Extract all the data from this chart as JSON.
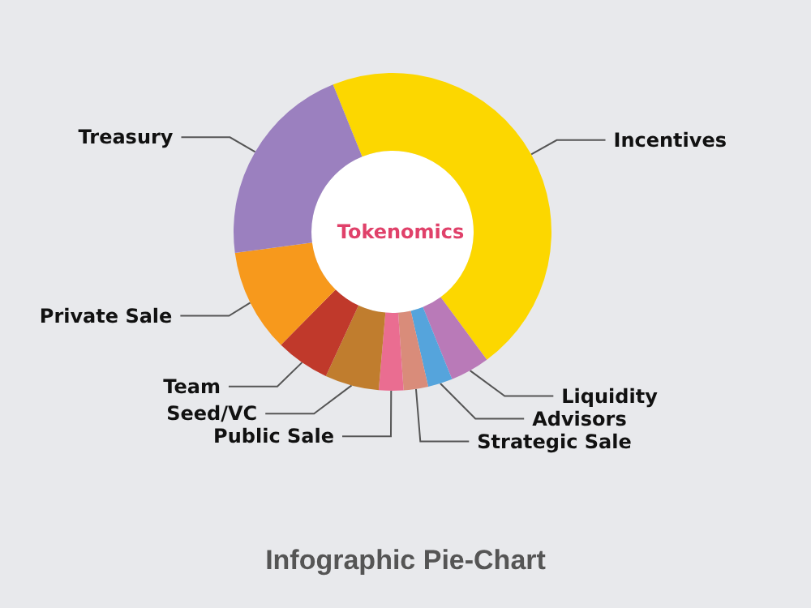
{
  "chart_data": {
    "type": "donut",
    "title": "Tokenomics",
    "annotations": [
      "Infographic Pie-Chart"
    ],
    "categories": [
      "Incentives",
      "Liquidity",
      "Advisors",
      "Strategic Sale",
      "Public Sale",
      "Seed/VC",
      "Team",
      "Private Sale",
      "Treasury"
    ],
    "values": [
      46,
      4,
      2.5,
      2.5,
      2.5,
      5.5,
      5.5,
      10.5,
      21
    ],
    "colors": [
      "#fcd700",
      "#b97ab8",
      "#55a4dc",
      "#d98c7a",
      "#ea6d91",
      "#c07d2e",
      "#c0392b",
      "#f7991c",
      "#9b80bf"
    ],
    "legend": false
  }
}
